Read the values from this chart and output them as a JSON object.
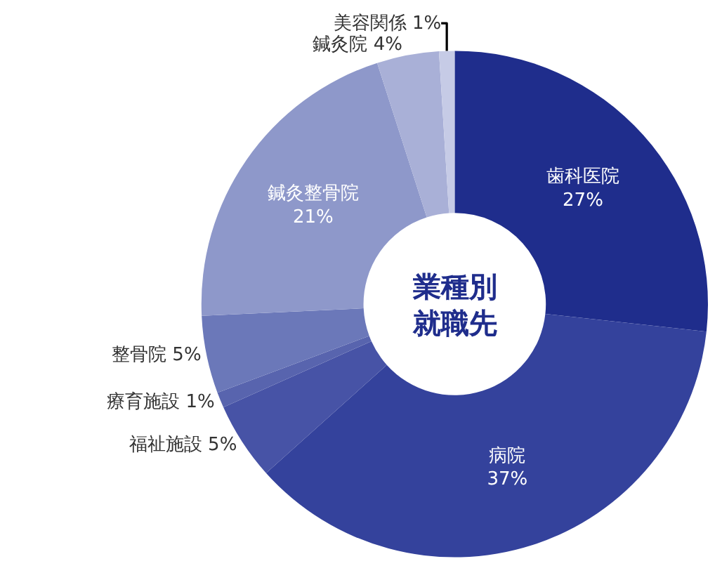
{
  "chart_data": {
    "type": "donut",
    "title": "業種別就職先",
    "categories": [
      "歯科医院",
      "病院",
      "福祉施設",
      "療育施設",
      "整骨院",
      "鍼灸整骨院",
      "鍼灸院",
      "美容関係"
    ],
    "values": [
      27,
      37,
      5,
      1,
      5,
      21,
      4,
      1
    ],
    "colors": [
      "#1f2d8c",
      "#34429c",
      "#4753a6",
      "#5864ae",
      "#6b78b9",
      "#8e98ca",
      "#a9b0d7",
      "#c6cbe6"
    ],
    "value_labels": [
      "27%",
      "37%",
      "5%",
      "1%",
      "5%",
      "21%",
      "4%",
      "1%"
    ],
    "legend": false
  }
}
